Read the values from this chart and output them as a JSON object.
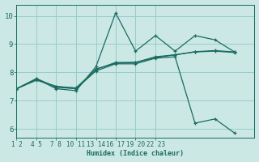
{
  "xlabel": "Humidex (Indice chaleur)",
  "bg_color": "#cce8e4",
  "grid_color": "#99cccc",
  "line_color": "#1a6b60",
  "xlim": [
    0,
    8
  ],
  "ylim": [
    5.7,
    10.4
  ],
  "yticks": [
    6,
    7,
    8,
    9,
    10
  ],
  "xtick_positions": [
    0,
    0.67,
    1.33,
    2.0,
    2.67,
    3.33,
    4.0,
    4.67,
    5.33,
    6.0,
    6.67,
    7.33
  ],
  "xtick_labels": [
    "1 2",
    "4 5",
    "7 8",
    "10 11",
    "13 14",
    "16 17",
    "19 20",
    "22 23",
    "",
    "",
    "",
    ""
  ],
  "series": [
    {
      "x": [
        0,
        0.67,
        1.33,
        2.0,
        2.67,
        3.33,
        4.0,
        4.67,
        5.33,
        6.0,
        6.67,
        7.33
      ],
      "y": [
        7.42,
        7.77,
        7.42,
        7.35,
        8.2,
        10.1,
        8.75,
        9.3,
        8.75,
        9.3,
        9.15,
        8.72
      ]
    },
    {
      "x": [
        0,
        0.67,
        1.33,
        2.0,
        2.67,
        3.33,
        4.0,
        4.67,
        5.33,
        6.0,
        6.67,
        7.33
      ],
      "y": [
        7.42,
        7.78,
        7.47,
        7.42,
        8.12,
        8.32,
        8.35,
        8.52,
        8.62,
        8.73,
        8.77,
        8.72
      ]
    },
    {
      "x": [
        0,
        0.67,
        1.33,
        2.0,
        2.67,
        3.33,
        4.0,
        4.67,
        5.33,
        6.0,
        6.67,
        7.33
      ],
      "y": [
        7.42,
        7.75,
        7.5,
        7.45,
        8.1,
        8.35,
        8.35,
        8.55,
        8.62,
        8.72,
        8.75,
        8.7
      ]
    },
    {
      "x": [
        0,
        0.67,
        1.33,
        2.0,
        2.67,
        3.33,
        4.0,
        4.67,
        5.33,
        6.0,
        6.67,
        7.33
      ],
      "y": [
        7.42,
        7.72,
        7.5,
        7.42,
        8.05,
        8.3,
        8.3,
        8.5,
        8.55,
        6.2,
        6.35,
        5.85
      ]
    }
  ]
}
